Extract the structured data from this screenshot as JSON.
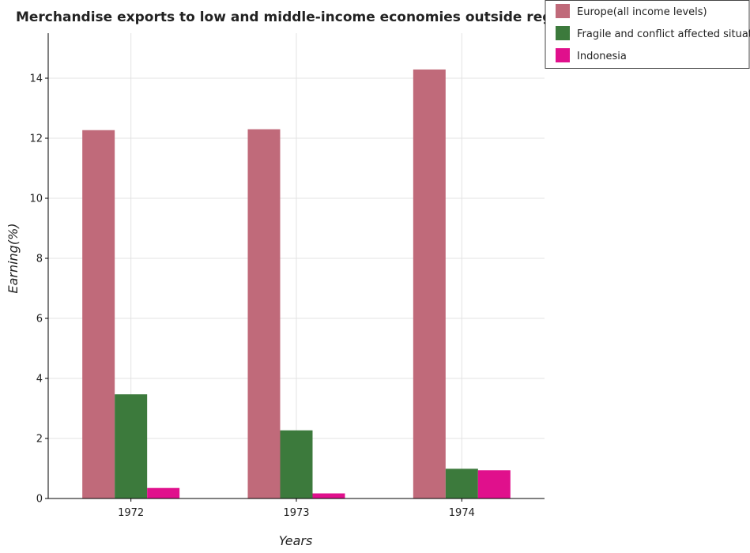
{
  "chart_data": {
    "type": "bar",
    "title": "Merchandise exports to low and middle-income economies outside region",
    "xlabel": "Years",
    "ylabel": "Earning(%)",
    "categories": [
      "1972",
      "1973",
      "1974"
    ],
    "ylim": [
      0,
      15.5
    ],
    "yticks": [
      0,
      2,
      4,
      6,
      8,
      10,
      12,
      14
    ],
    "ytick_labels": [
      "0",
      "2",
      "4",
      "6",
      "8",
      "10",
      "12",
      "14"
    ],
    "grid": true,
    "legend_position": "top-right",
    "series": [
      {
        "name": "Europe(all income levels)",
        "color": "#c06a7a",
        "values": [
          12.27,
          12.3,
          14.29
        ]
      },
      {
        "name": "Fragile and conflict affected situations",
        "color": "#3c7a3c",
        "values": [
          3.47,
          2.27,
          0.99
        ]
      },
      {
        "name": "Indonesia",
        "color": "#e0108c",
        "values": [
          0.35,
          0.17,
          0.94
        ]
      }
    ]
  }
}
